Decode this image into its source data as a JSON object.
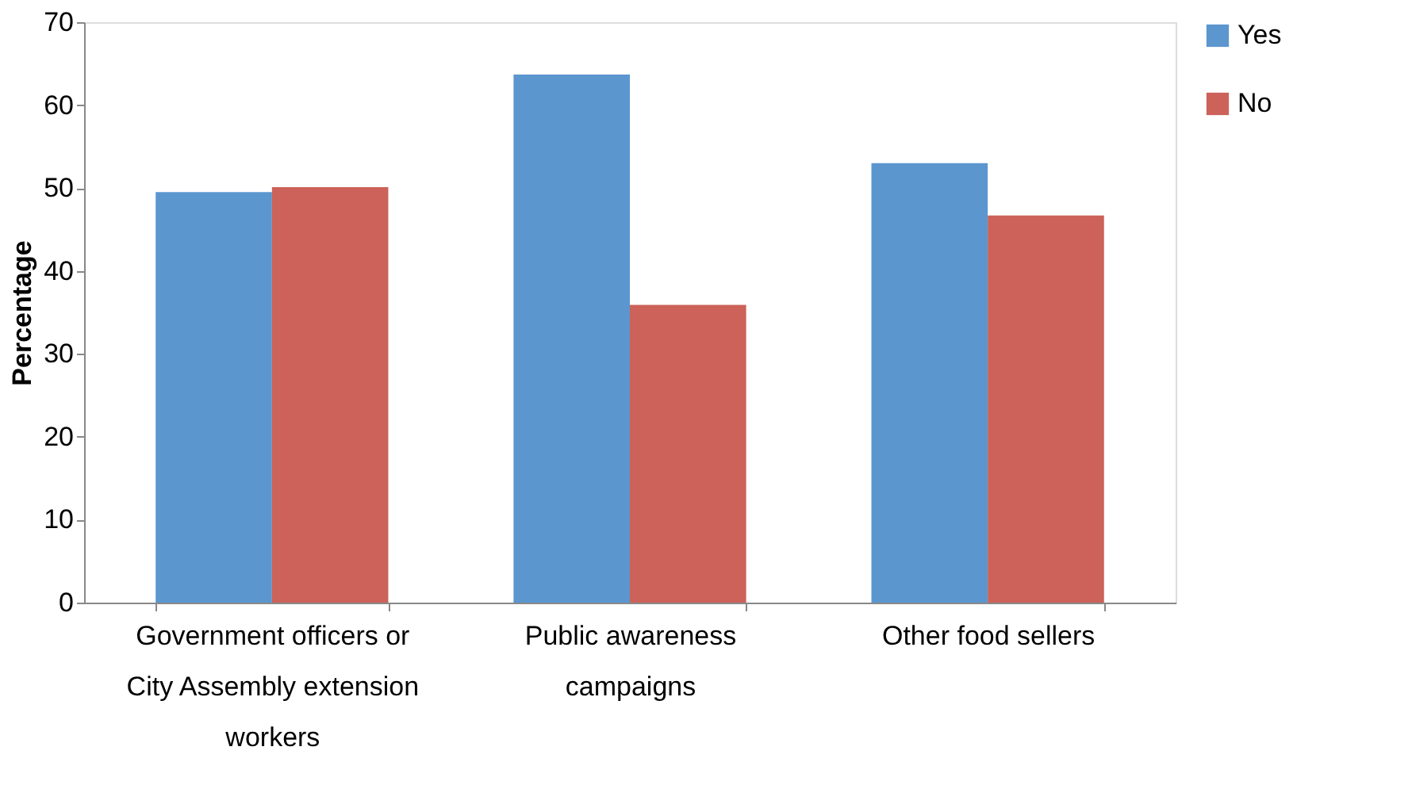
{
  "chart_data": {
    "type": "bar",
    "ylabel": "Percentage",
    "categories": [
      "Government officers or City Assembly extension workers",
      "Public awareness campaigns",
      "Other food sellers"
    ],
    "series": [
      {
        "name": "Yes",
        "color": "#5b96cf",
        "values": [
          49.5,
          63.7,
          53.0
        ]
      },
      {
        "name": "No",
        "color": "#cc6259",
        "values": [
          50.1,
          35.9,
          46.7
        ]
      }
    ],
    "ylim": [
      0,
      70
    ],
    "yticks": [
      0,
      10,
      20,
      30,
      40,
      50,
      60,
      70
    ],
    "grid": false,
    "legend": "right"
  }
}
